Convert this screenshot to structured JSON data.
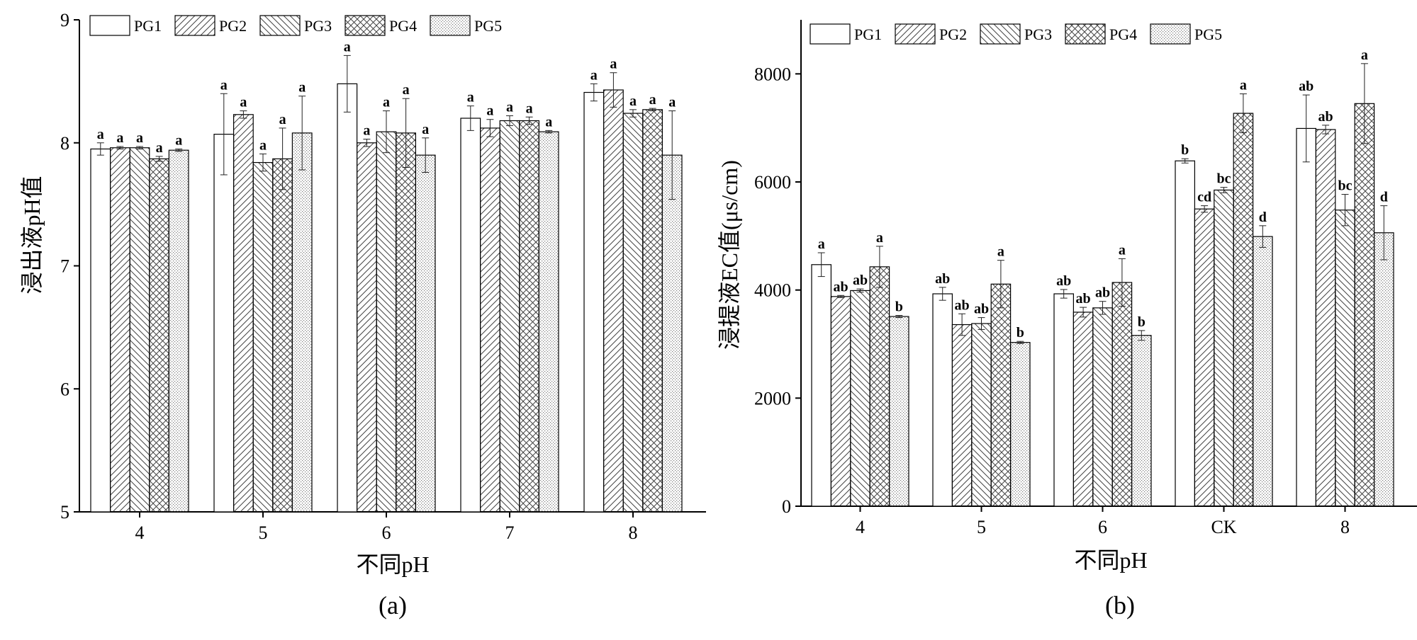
{
  "chart_data": [
    {
      "type": "bar",
      "panel_label": "(a)",
      "xlabel": "不同pH",
      "ylabel": "浸出液pH值",
      "categories": [
        "4",
        "5",
        "6",
        "7",
        "8"
      ],
      "ylim": [
        5,
        9
      ],
      "yticks": [
        5,
        6,
        7,
        8,
        9
      ],
      "grid": false,
      "legend_position": "top-left",
      "series": [
        {
          "name": "PG1",
          "pattern": "blank",
          "values": [
            7.95,
            8.07,
            8.48,
            8.2,
            8.41
          ],
          "errors": [
            0.05,
            0.33,
            0.23,
            0.1,
            0.07
          ],
          "labels": [
            "a",
            "a",
            "a",
            "a",
            "a"
          ]
        },
        {
          "name": "PG2",
          "pattern": "diag-right",
          "values": [
            7.96,
            8.23,
            8.0,
            8.12,
            8.43
          ],
          "errors": [
            0.01,
            0.03,
            0.03,
            0.07,
            0.14
          ],
          "labels": [
            "a",
            "a",
            "a",
            "a",
            "a"
          ]
        },
        {
          "name": "PG3",
          "pattern": "diag-left",
          "values": [
            7.96,
            7.84,
            8.09,
            8.18,
            8.24
          ],
          "errors": [
            0.01,
            0.07,
            0.17,
            0.04,
            0.03
          ],
          "labels": [
            "a",
            "a",
            "a",
            "a",
            "a"
          ]
        },
        {
          "name": "PG4",
          "pattern": "cross",
          "values": [
            7.87,
            7.87,
            8.08,
            8.18,
            8.27
          ],
          "errors": [
            0.02,
            0.25,
            0.28,
            0.03,
            0.01
          ],
          "labels": [
            "a",
            "a",
            "a",
            "a",
            "a"
          ]
        },
        {
          "name": "PG5",
          "pattern": "dots",
          "values": [
            7.94,
            8.08,
            7.9,
            8.09,
            7.9
          ],
          "errors": [
            0.01,
            0.3,
            0.14,
            0.01,
            0.36
          ],
          "labels": [
            "a",
            "a",
            "a",
            "a",
            "a"
          ]
        }
      ]
    },
    {
      "type": "bar",
      "panel_label": "(b)",
      "xlabel": "不同pH",
      "ylabel": "浸提液EC值(μs/cm)",
      "categories": [
        "4",
        "5",
        "6",
        "CK",
        "8"
      ],
      "ylim": [
        0,
        9000
      ],
      "yticks": [
        0,
        2000,
        4000,
        6000,
        8000
      ],
      "grid": false,
      "legend_position": "top-left",
      "series": [
        {
          "name": "PG1",
          "pattern": "blank",
          "values": [
            4470,
            3930,
            3930,
            6390,
            6990
          ],
          "errors": [
            220,
            120,
            80,
            40,
            620
          ],
          "labels": [
            "a",
            "ab",
            "ab",
            "b",
            "ab"
          ]
        },
        {
          "name": "PG2",
          "pattern": "diag-right",
          "values": [
            3880,
            3360,
            3590,
            5500,
            6970
          ],
          "errors": [
            20,
            200,
            90,
            60,
            80
          ],
          "labels": [
            "ab",
            "ab",
            "ab",
            "cd",
            "ab"
          ]
        },
        {
          "name": "PG3",
          "pattern": "diag-left",
          "values": [
            3990,
            3380,
            3670,
            5850,
            5480
          ],
          "errors": [
            30,
            110,
            120,
            50,
            290
          ],
          "labels": [
            "ab",
            "ab",
            "ab",
            "bc",
            "bc"
          ]
        },
        {
          "name": "PG4",
          "pattern": "cross",
          "values": [
            4430,
            4110,
            4140,
            7270,
            7450
          ],
          "errors": [
            380,
            440,
            440,
            360,
            740
          ],
          "labels": [
            "a",
            "a",
            "a",
            "a",
            "a"
          ]
        },
        {
          "name": "PG5",
          "pattern": "dots",
          "values": [
            3510,
            3030,
            3160,
            4990,
            5060
          ],
          "errors": [
            20,
            20,
            90,
            200,
            500
          ],
          "labels": [
            "b",
            "b",
            "b",
            "d",
            "d"
          ]
        }
      ]
    }
  ]
}
